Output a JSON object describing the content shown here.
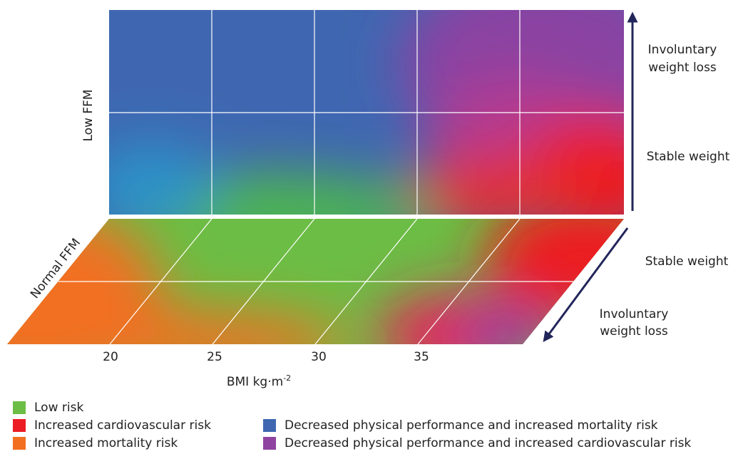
{
  "axes": {
    "low_ffm": "Low FFM",
    "normal_ffm": "Normal FFM",
    "x_label_base": "BMI kg·m",
    "x_label_sup": "-2",
    "x_ticks": [
      "20",
      "25",
      "30",
      "35"
    ]
  },
  "right_labels": {
    "upper_involuntary_line1": "Involuntary",
    "upper_involuntary_line2": "weight loss",
    "upper_stable": "Stable weight",
    "lower_stable": "Stable weight",
    "lower_involuntary_line1": "Involuntary",
    "lower_involuntary_line2": "weight loss"
  },
  "colors": {
    "low_risk": "#6cbd45",
    "cardiovascular": "#ec1c24",
    "mortality": "#f26f21",
    "performance_mortality": "#3f67b1",
    "performance_cardiovascular": "#8e44a0",
    "arrow": "#22265a",
    "grid": "#ffffff"
  },
  "legend": [
    {
      "label": "Low risk",
      "color": "#6cbd45"
    },
    {
      "label": "Increased cardiovascular risk",
      "color": "#ec1c24"
    },
    {
      "label": "Increased mortality risk",
      "color": "#f26f21"
    },
    {
      "label": "Decreased physical performance and increased mortality risk",
      "color": "#3f67b1"
    },
    {
      "label": "Decreased physical performance and increased cardiovascular risk",
      "color": "#8e44a0"
    }
  ]
}
